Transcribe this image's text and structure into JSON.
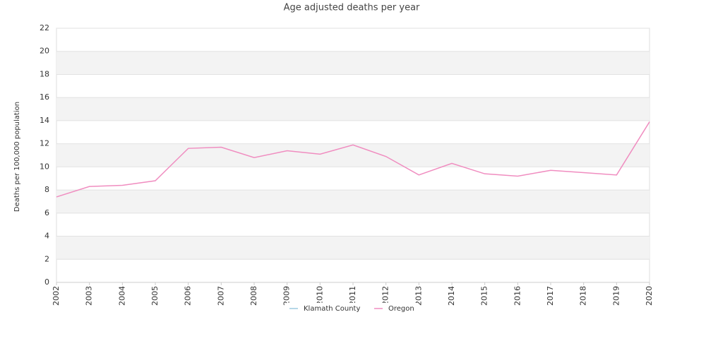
{
  "chart_data": {
    "type": "line",
    "title": "Age adjusted deaths per year",
    "y_label": "Deaths per 100,000 population",
    "categories": [
      "2002",
      "2003",
      "2004",
      "2005",
      "2006",
      "2007",
      "2008",
      "2009",
      "2010",
      "2011",
      "2012",
      "2013",
      "2014",
      "2015",
      "2016",
      "2017",
      "2018",
      "2019",
      "2020"
    ],
    "series": [
      {
        "name": "Klamath County",
        "color": "#9ecae1",
        "values": [
          null,
          null,
          null,
          null,
          null,
          null,
          null,
          null,
          null,
          null,
          null,
          null,
          null,
          null,
          null,
          null,
          null,
          null,
          null
        ]
      },
      {
        "name": "Oregon",
        "color": "#f08dc0",
        "values": [
          7.4,
          8.3,
          8.4,
          8.8,
          11.6,
          11.7,
          10.8,
          11.4,
          11.1,
          11.9,
          10.9,
          9.3,
          10.3,
          9.4,
          9.2,
          9.7,
          9.5,
          9.3,
          13.9
        ]
      }
    ],
    "ylim": [
      0,
      22
    ],
    "yticks": [
      0,
      2,
      4,
      6,
      8,
      10,
      12,
      14,
      16,
      18,
      20,
      22
    ],
    "grid": true,
    "legend": "bottom"
  }
}
